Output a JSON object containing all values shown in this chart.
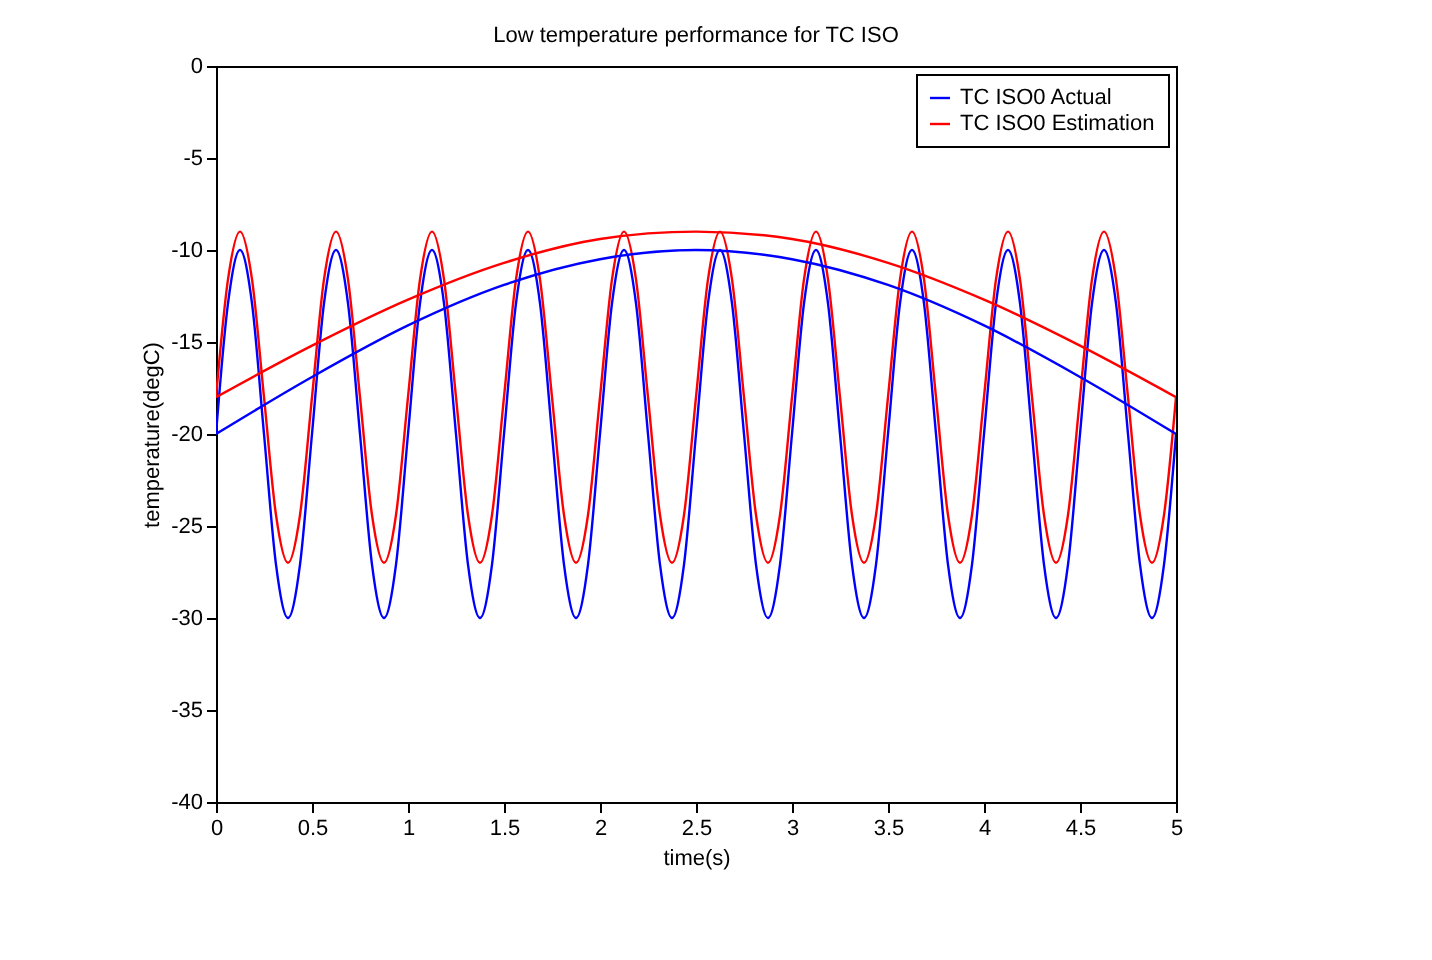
{
  "chart_data": {
    "type": "line",
    "title": "Low temperature performance for TC ISO",
    "xlabel": "time(s)",
    "ylabel": "temperature(degC)",
    "xlim": [
      0,
      5
    ],
    "xticks": [
      0,
      0.5,
      1,
      1.5,
      2,
      2.5,
      3,
      3.5,
      4,
      4.5,
      5
    ],
    "ylim": [
      -40,
      0
    ],
    "yticks": [
      -40,
      -35,
      -30,
      -25,
      -20,
      -15,
      -10,
      -5,
      0
    ],
    "grid": false,
    "legend": "top right",
    "line_style": "solid",
    "marker": "none",
    "series": [
      {
        "name": "TC ISO0 Actual",
        "color": "#0000ff",
        "x": [
          0,
          0.0625,
          0.125,
          0.1875,
          0.25,
          0.3125,
          0.375,
          0.4375,
          0.5,
          0.5625,
          0.625,
          0.6875,
          0.75,
          0.8125,
          0.875,
          0.9375,
          1,
          1.0625,
          1.125,
          1.1875,
          1.25,
          1.3125,
          1.375,
          1.4375,
          1.5,
          1.5625,
          1.625,
          1.6875,
          1.75,
          1.8125,
          1.875,
          1.9375,
          2,
          2.0625,
          2.125,
          2.1875,
          2.25,
          2.3125,
          2.375,
          2.4375,
          2.5,
          2.5625,
          2.625,
          2.6875,
          2.75,
          2.8125,
          2.875,
          2.9375,
          3,
          3.0625,
          3.125,
          3.1875,
          3.25,
          3.3125,
          3.375,
          3.4375,
          3.5,
          3.5625,
          3.625,
          3.6875,
          3.75,
          3.8125,
          3.875,
          3.9375,
          4,
          4.0625,
          4.125,
          4.1875,
          4.25,
          4.3125,
          4.375,
          4.4375,
          4.5,
          4.5625,
          4.625,
          4.6875,
          4.75,
          4.8125,
          4.875,
          4.9375,
          5
        ],
        "values": [
          -20,
          -12.9,
          -10,
          -12.9,
          -20,
          -27.1,
          -30,
          -27.1,
          -20,
          -12.9,
          -10,
          -12.9,
          -20,
          -27.1,
          -30,
          -27.1,
          -20,
          -12.9,
          -10,
          -12.9,
          -20,
          -27.1,
          -30,
          -27.1,
          -20,
          -12.9,
          -10,
          -12.9,
          -20,
          -27.1,
          -30,
          -27.1,
          -20,
          -12.9,
          -10,
          -12.9,
          -20,
          -27.1,
          -30,
          -27.1,
          -20,
          -12.9,
          -10,
          -12.9,
          -20,
          -27.1,
          -30,
          -27.1,
          -20,
          -12.9,
          -10,
          -12.9,
          -20,
          -27.1,
          -30,
          -27.1,
          -20,
          -12.9,
          -10,
          -12.9,
          -20,
          -27.1,
          -30,
          -27.1,
          -20,
          -12.9,
          -10,
          -12.9,
          -20,
          -27.1,
          -30,
          -27.1,
          -20,
          -12.9,
          -10,
          -12.9,
          -20,
          -27.1,
          -30,
          -27.1,
          -20
        ]
      },
      {
        "name": "TC ISO0 Estimation",
        "color": "#ff0000",
        "x": [
          0,
          0.0625,
          0.125,
          0.1875,
          0.25,
          0.3125,
          0.375,
          0.4375,
          0.5,
          0.5625,
          0.625,
          0.6875,
          0.75,
          0.8125,
          0.875,
          0.9375,
          1,
          1.0625,
          1.125,
          1.1875,
          1.25,
          1.3125,
          1.375,
          1.4375,
          1.5,
          1.5625,
          1.625,
          1.6875,
          1.75,
          1.8125,
          1.875,
          1.9375,
          2,
          2.0625,
          2.125,
          2.1875,
          2.25,
          2.3125,
          2.375,
          2.4375,
          2.5,
          2.5625,
          2.625,
          2.6875,
          2.75,
          2.8125,
          2.875,
          2.9375,
          3,
          3.0625,
          3.125,
          3.1875,
          3.25,
          3.3125,
          3.375,
          3.4375,
          3.5,
          3.5625,
          3.625,
          3.6875,
          3.75,
          3.8125,
          3.875,
          3.9375,
          4,
          4.0625,
          4.125,
          4.1875,
          4.25,
          4.3125,
          4.375,
          4.4375,
          4.5,
          4.5625,
          4.625,
          4.6875,
          4.75,
          4.8125,
          4.875,
          4.9375,
          5
        ],
        "values": [
          -18,
          -11.6,
          -9,
          -11.6,
          -18,
          -24.4,
          -27,
          -24.4,
          -18,
          -11.6,
          -9,
          -11.6,
          -18,
          -24.4,
          -27,
          -24.4,
          -18,
          -11.6,
          -9,
          -11.6,
          -18,
          -24.4,
          -27,
          -24.4,
          -18,
          -11.6,
          -9,
          -11.6,
          -18,
          -24.4,
          -27,
          -24.4,
          -18,
          -11.6,
          -9,
          -11.6,
          -18,
          -24.4,
          -27,
          -24.4,
          -18,
          -11.6,
          -9,
          -11.6,
          -18,
          -24.4,
          -27,
          -24.4,
          -18,
          -11.6,
          -9,
          -11.6,
          -18,
          -24.4,
          -27,
          -24.4,
          -18,
          -11.6,
          -9,
          -11.6,
          -18,
          -24.4,
          -27,
          -24.4,
          -18,
          -11.6,
          -9,
          -11.6,
          -18,
          -24.4,
          -27,
          -24.4,
          -18,
          -11.6,
          -9,
          -11.6,
          -18,
          -24.4,
          -27,
          -24.4,
          -18
        ]
      },
      {
        "color": "#0000ff",
        "x": [
          0,
          0.5,
          1,
          1.5,
          2,
          2.5,
          3,
          3.5,
          4,
          4.5,
          5
        ],
        "values": [
          -20,
          -16.9,
          -14.1,
          -11.9,
          -10.5,
          -10,
          -10.5,
          -11.9,
          -14.1,
          -16.9,
          -20
        ]
      },
      {
        "color": "#ff0000",
        "x": [
          0,
          0.5,
          1,
          1.5,
          2,
          2.5,
          3,
          3.5,
          4,
          4.5,
          5
        ],
        "values": [
          -18,
          -15.2,
          -12.7,
          -10.7,
          -9.4,
          -9,
          -9.4,
          -10.7,
          -12.7,
          -15.2,
          -18
        ]
      }
    ]
  }
}
